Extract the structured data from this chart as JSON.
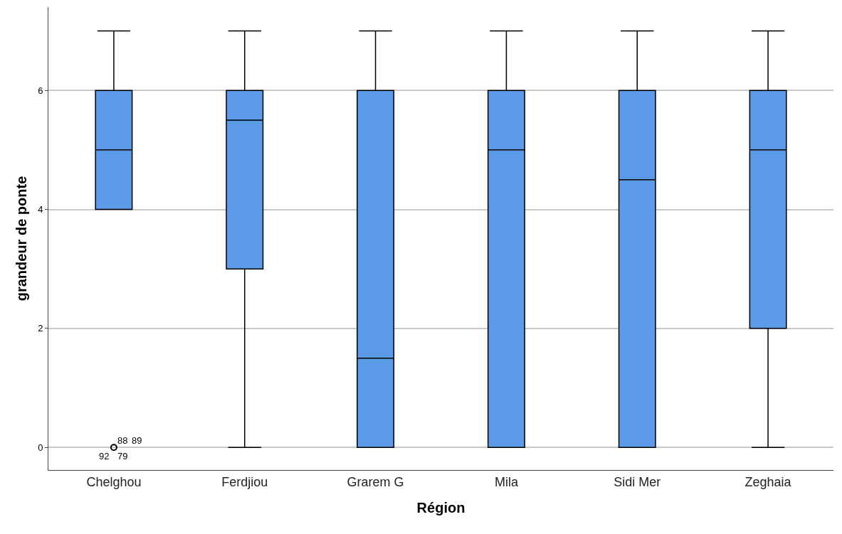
{
  "chart_data": {
    "type": "box",
    "xlabel": "Région",
    "ylabel": "grandeur de ponte",
    "categories": [
      "Chelghou",
      "Ferdjiou",
      "Grarem G",
      "Mila",
      "Sidi Mer",
      "Zeghaia"
    ],
    "boxes": [
      {
        "low": 4,
        "q1": 4,
        "median": 5,
        "q3": 6,
        "high": 7,
        "outliers": [
          0
        ]
      },
      {
        "low": 0,
        "q1": 3,
        "median": 5.5,
        "q3": 6,
        "high": 7
      },
      {
        "low": 0,
        "q1": 0,
        "median": 1.5,
        "q3": 6,
        "high": 7
      },
      {
        "low": 0,
        "q1": 0,
        "median": 5,
        "q3": 6,
        "high": 7
      },
      {
        "low": 0,
        "q1": 0,
        "median": 4.5,
        "q3": 6,
        "high": 7
      },
      {
        "low": 0,
        "q1": 2,
        "median": 5,
        "q3": 6,
        "high": 7
      }
    ],
    "color": "#5a9ae6",
    "ylim": [
      -0.38,
      7.4
    ],
    "yticks": [
      0,
      2,
      4,
      6
    ],
    "grid": "y",
    "annotations": [
      "88",
      "89",
      "92",
      "79"
    ]
  }
}
